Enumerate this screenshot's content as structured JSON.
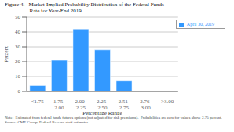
{
  "chart_data": {
    "type": "bar",
    "title": "Figure 4.   Market-Implied Probability Distribution of the Federal Funds\n                  Rate for Year-End 2019",
    "categories": [
      "<1.75",
      "1.75-\n2.00",
      "2.00-\n2.25",
      "2.25-\n2.50",
      "2.51-\n2.75",
      "2.76-\n3.00",
      ">3.00"
    ],
    "series": [
      {
        "name": "April 30, 2019",
        "color": "#3399ff",
        "values": [
          4,
          21,
          42,
          28,
          7,
          0,
          0
        ]
      }
    ],
    "ylabel": "Percent",
    "xlabel": "Percentage Range",
    "ylim": [
      0,
      50
    ],
    "yticks": [
      0,
      10,
      20,
      30,
      40,
      50
    ],
    "grid": true,
    "legend": "upper right",
    "annotations": [
      "Note:  Estimated from federal funds futures options (not adjusted for risk premiums).  Probabilities are zero for values above 2.75 percent.",
      "Source: CME Group; Federal Reserve staff estimates."
    ]
  }
}
